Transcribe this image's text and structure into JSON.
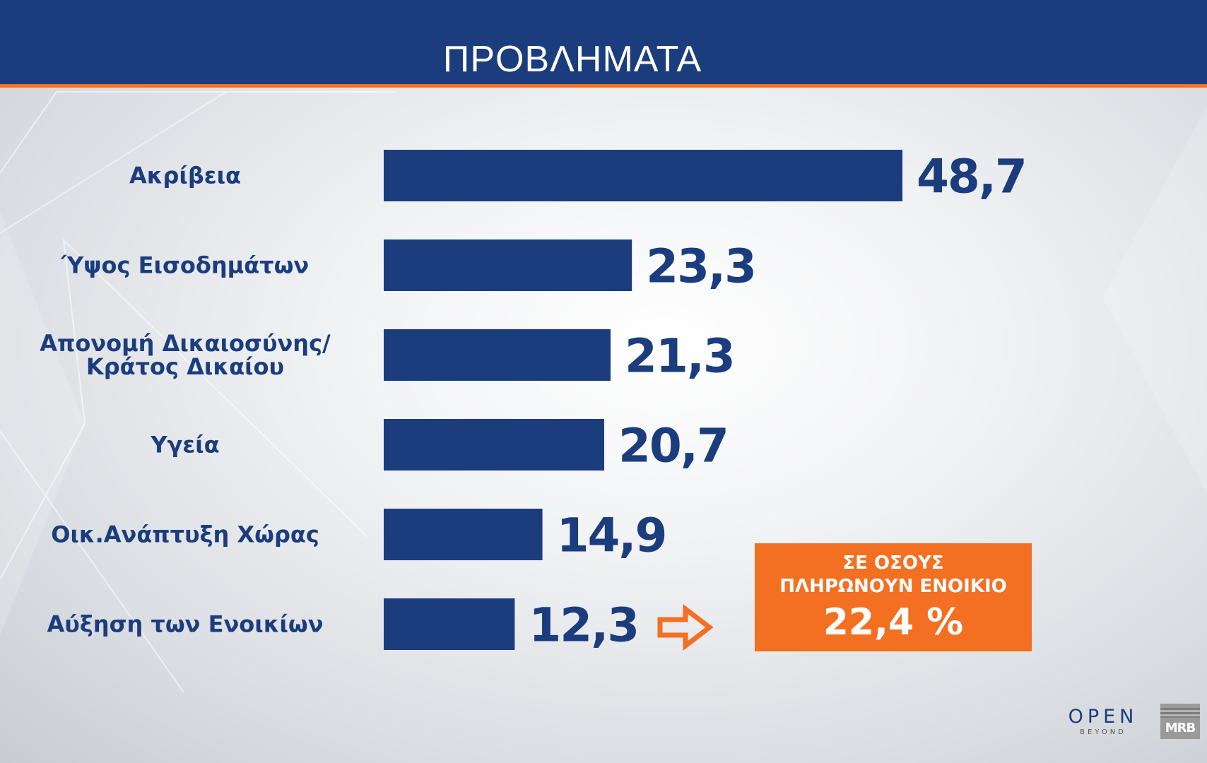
{
  "header": {
    "title": "ΠΡΟΒΛΗΜΑΤΑ"
  },
  "colors": {
    "header_bg": "#1b3d7d",
    "accent": "#f36f21",
    "bar": "#1b3d7d",
    "text": "#1b3d7d"
  },
  "chart_data": {
    "type": "bar",
    "orientation": "horizontal",
    "title": "ΠΡΟΒΛΗΜΑΤΑ",
    "categories": [
      "Ακρίβεια",
      "Ύψος Εισοδημάτων",
      "Απονομή Δικαιοσύνης/ Κράτος Δικαίου",
      "Υγεία",
      "Οικ.Ανάπτυξη Χώρας",
      "Αύξηση των Ενοικίων"
    ],
    "category_lines": [
      [
        "Ακρίβεια"
      ],
      [
        "Ύψος Εισοδημάτων"
      ],
      [
        "Απονομή Δικαιοσύνης/",
        "Κράτος Δικαίου"
      ],
      [
        "Υγεία"
      ],
      [
        "Οικ.Ανάπτυξη Χώρας"
      ],
      [
        "Αύξηση των Ενοικίων"
      ]
    ],
    "values": [
      48.7,
      23.3,
      21.3,
      20.7,
      14.9,
      12.3
    ],
    "value_labels": [
      "48,7",
      "23,3",
      "21,3",
      "20,7",
      "14,9",
      "12,3"
    ],
    "xlim": [
      0,
      48.7
    ],
    "grid": false,
    "legend": "none"
  },
  "callout": {
    "line1": "ΣΕ ΟΣΟΥΣ",
    "line2": "ΠΛΗΡΩΝΟΥΝ ΕΝΟΙΚΙΟ",
    "value": "22,4 %"
  },
  "logos": {
    "open_main": "OPEN",
    "open_sub": "BEYOND",
    "mrb": "MRB"
  },
  "icons": {
    "arrow": "arrow-right-outline-icon"
  }
}
